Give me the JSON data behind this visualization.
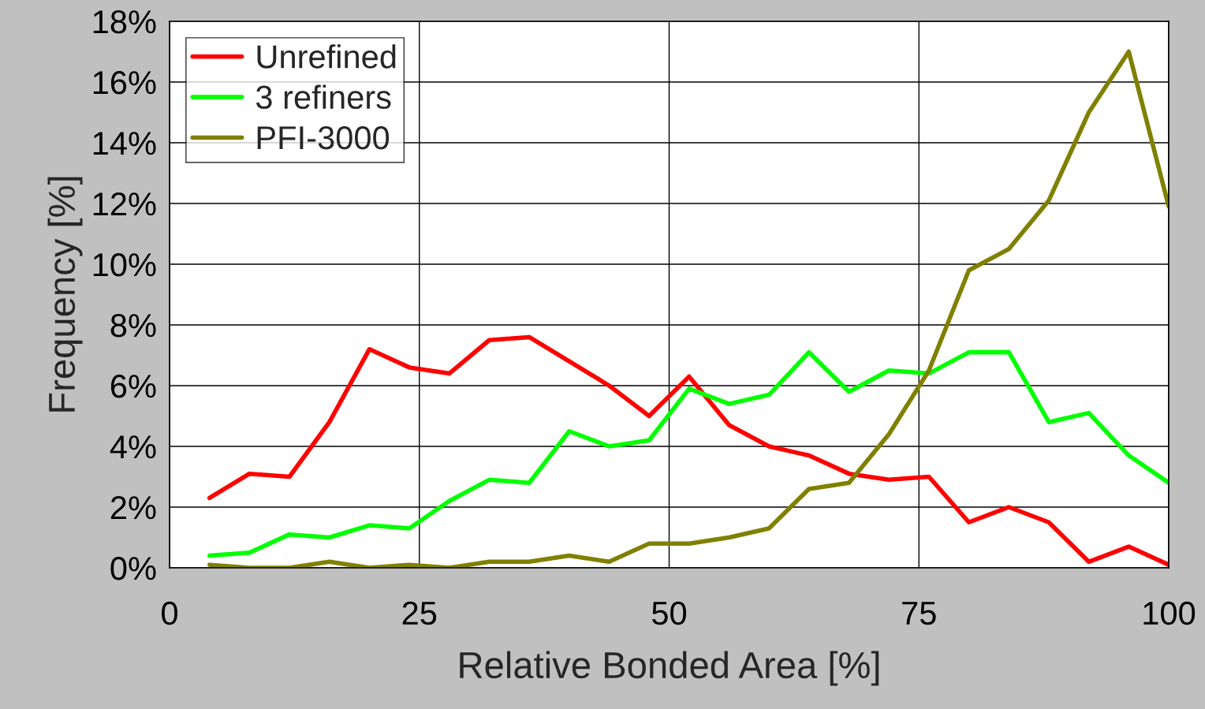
{
  "chart_data": {
    "type": "line",
    "xlabel": "Relative Bonded Area [%]",
    "ylabel": "Frequency [%]",
    "x": [
      4,
      8,
      12,
      16,
      20,
      24,
      28,
      32,
      36,
      40,
      44,
      48,
      52,
      56,
      60,
      64,
      68,
      72,
      76,
      80,
      84,
      88,
      92,
      96,
      100
    ],
    "series": [
      {
        "name": "Unrefined",
        "color": "#ff0000",
        "values": [
          2.3,
          3.1,
          3.0,
          4.8,
          7.2,
          6.6,
          6.4,
          7.5,
          7.6,
          6.8,
          6.0,
          5.0,
          6.3,
          4.7,
          4.0,
          3.7,
          3.1,
          2.9,
          3.0,
          1.5,
          2.0,
          1.5,
          0.2,
          0.7,
          0.1
        ]
      },
      {
        "name": "3 refiners",
        "color": "#00ff00",
        "values": [
          0.4,
          0.5,
          1.1,
          1.0,
          1.4,
          1.3,
          2.2,
          2.9,
          2.8,
          4.5,
          4.0,
          4.2,
          5.9,
          5.4,
          5.7,
          7.1,
          5.8,
          6.5,
          6.4,
          7.1,
          7.1,
          4.8,
          5.1,
          3.7,
          2.8
        ]
      },
      {
        "name": "PFI-3000",
        "color": "#808000",
        "values": [
          0.1,
          0,
          0,
          0.2,
          0,
          0.1,
          0,
          0.2,
          0.2,
          0.4,
          0.2,
          0.8,
          0.8,
          1.0,
          1.3,
          2.6,
          2.8,
          4.4,
          6.5,
          9.8,
          10.5,
          12.1,
          15.0,
          17.0,
          11.9
        ]
      }
    ],
    "xlim": [
      0,
      100
    ],
    "xticks": [
      0,
      25,
      50,
      75,
      100
    ],
    "ylim": [
      0,
      18
    ],
    "yticks": [
      {
        "value": 0,
        "label": "0%"
      },
      {
        "value": 2,
        "label": "2%"
      },
      {
        "value": 4,
        "label": "4%"
      },
      {
        "value": 6,
        "label": "6%"
      },
      {
        "value": 8,
        "label": "8%"
      },
      {
        "value": 10,
        "label": "10%"
      },
      {
        "value": 12,
        "label": "12%"
      },
      {
        "value": 14,
        "label": "14%"
      },
      {
        "value": 16,
        "label": "16%"
      },
      {
        "value": 18,
        "label": "18%"
      }
    ],
    "grid": true,
    "legend": "top left",
    "marker": "none",
    "line_style": "solid"
  }
}
